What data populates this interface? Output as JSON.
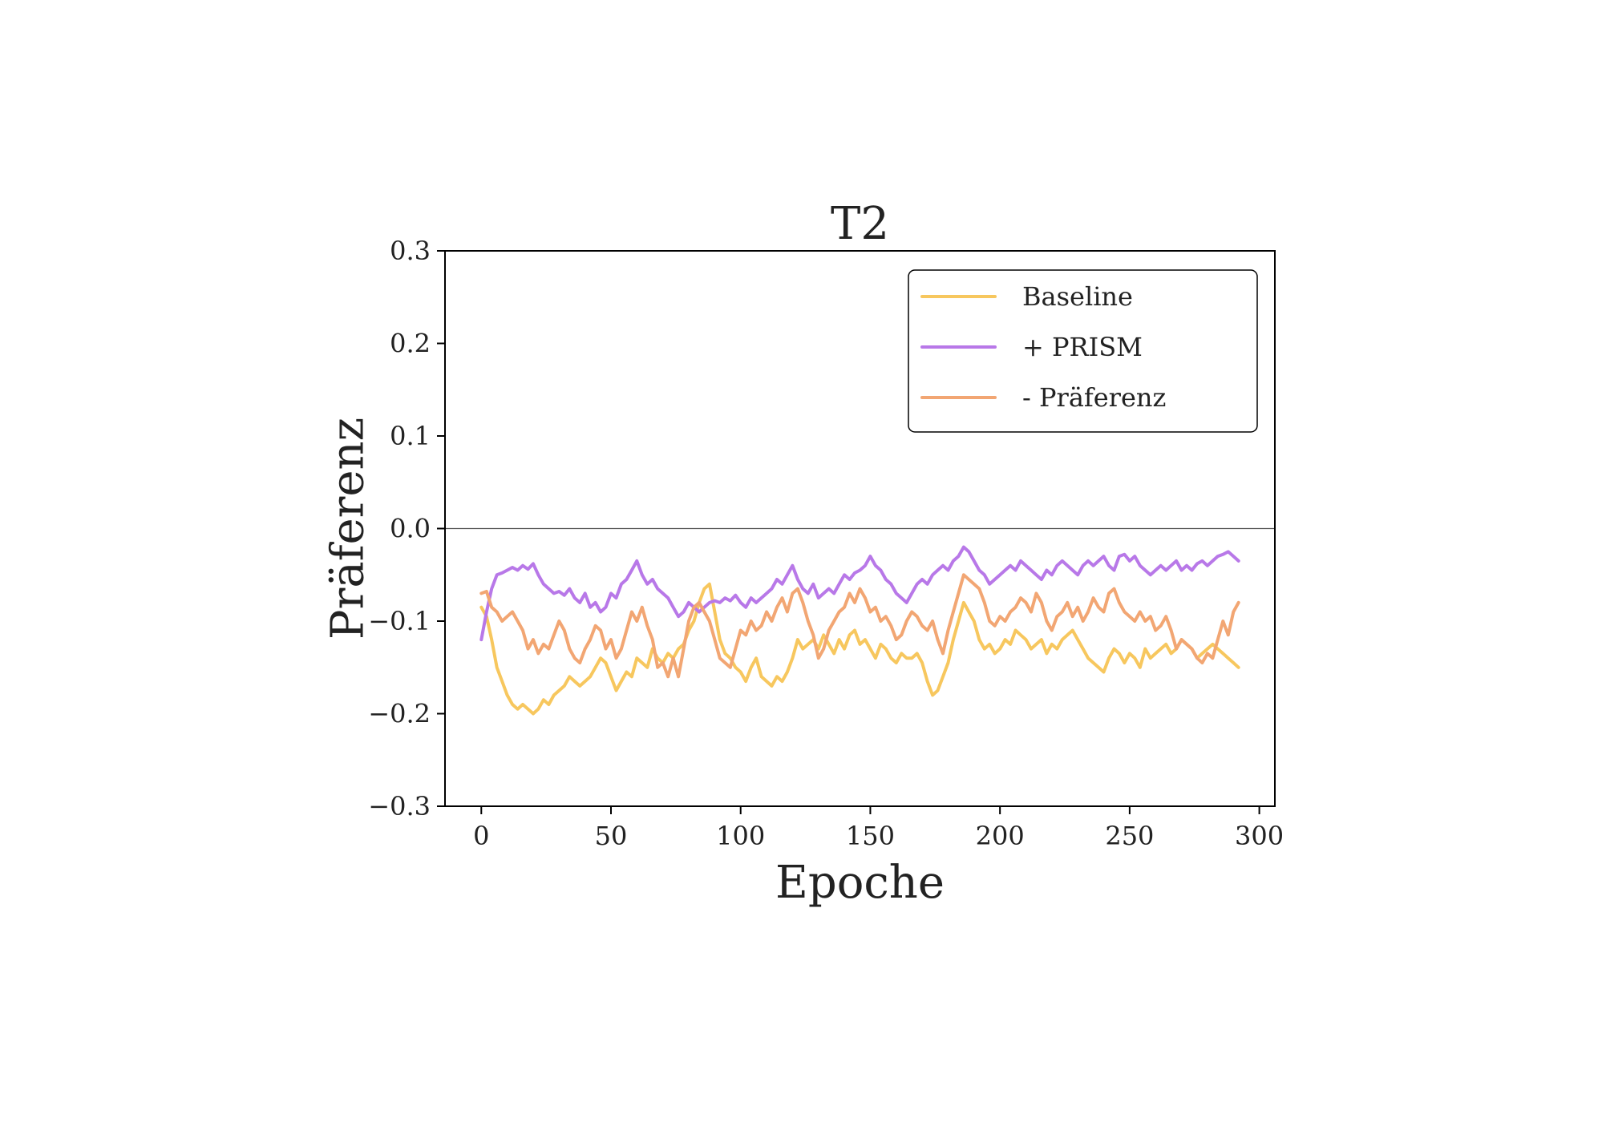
{
  "chart_data": {
    "type": "line",
    "title": "T2",
    "xlabel": "Epoche",
    "ylabel": "Präferenz",
    "xlim": [
      -14,
      306
    ],
    "ylim": [
      -0.3,
      0.3
    ],
    "xticks": [
      0,
      50,
      100,
      150,
      200,
      250,
      300
    ],
    "xtick_labels": [
      "0",
      "50",
      "100",
      "150",
      "200",
      "250",
      "300"
    ],
    "yticks": [
      0.3,
      0.2,
      0.1,
      0.0,
      -0.1,
      -0.2,
      -0.3
    ],
    "ytick_labels": [
      "0.3",
      "0.2",
      "0.1",
      "0.0",
      "−0.1",
      "−0.2",
      "−0.3"
    ],
    "grid": false,
    "reference_line_y": 0.0,
    "legend": {
      "position": "top-right"
    },
    "series": [
      {
        "name": "Baseline",
        "color": "#f7c75e",
        "x": [
          0,
          2,
          4,
          6,
          8,
          10,
          12,
          14,
          16,
          18,
          20,
          22,
          24,
          26,
          28,
          30,
          32,
          34,
          36,
          38,
          40,
          42,
          44,
          46,
          48,
          50,
          52,
          54,
          56,
          58,
          60,
          62,
          64,
          66,
          68,
          70,
          72,
          74,
          76,
          78,
          80,
          82,
          84,
          86,
          88,
          90,
          92,
          94,
          96,
          98,
          100,
          102,
          104,
          106,
          108,
          110,
          112,
          114,
          116,
          118,
          120,
          122,
          124,
          126,
          128,
          130,
          132,
          134,
          136,
          138,
          140,
          142,
          144,
          146,
          148,
          150,
          152,
          154,
          156,
          158,
          160,
          162,
          164,
          166,
          168,
          170,
          172,
          174,
          176,
          178,
          180,
          182,
          184,
          186,
          188,
          190,
          192,
          194,
          196,
          198,
          200,
          202,
          204,
          206,
          208,
          210,
          212,
          214,
          216,
          218,
          220,
          222,
          224,
          226,
          228,
          230,
          232,
          234,
          236,
          238,
          240,
          242,
          244,
          246,
          248,
          250,
          252,
          254,
          256,
          258,
          260,
          262,
          264,
          266,
          268,
          270,
          272,
          274,
          276,
          278,
          280,
          282,
          284,
          286,
          288,
          290,
          292
        ],
        "y": [
          -0.085,
          -0.095,
          -0.12,
          -0.15,
          -0.165,
          -0.18,
          -0.19,
          -0.195,
          -0.19,
          -0.195,
          -0.2,
          -0.195,
          -0.185,
          -0.19,
          -0.18,
          -0.175,
          -0.17,
          -0.16,
          -0.165,
          -0.17,
          -0.165,
          -0.16,
          -0.15,
          -0.14,
          -0.145,
          -0.16,
          -0.175,
          -0.165,
          -0.155,
          -0.16,
          -0.14,
          -0.145,
          -0.15,
          -0.13,
          -0.14,
          -0.145,
          -0.135,
          -0.14,
          -0.13,
          -0.125,
          -0.11,
          -0.1,
          -0.08,
          -0.065,
          -0.06,
          -0.09,
          -0.12,
          -0.135,
          -0.14,
          -0.15,
          -0.155,
          -0.165,
          -0.15,
          -0.14,
          -0.16,
          -0.165,
          -0.17,
          -0.16,
          -0.165,
          -0.155,
          -0.14,
          -0.12,
          -0.13,
          -0.125,
          -0.12,
          -0.13,
          -0.115,
          -0.125,
          -0.135,
          -0.12,
          -0.13,
          -0.115,
          -0.11,
          -0.125,
          -0.12,
          -0.13,
          -0.14,
          -0.125,
          -0.13,
          -0.14,
          -0.145,
          -0.135,
          -0.14,
          -0.14,
          -0.135,
          -0.145,
          -0.165,
          -0.18,
          -0.175,
          -0.16,
          -0.145,
          -0.12,
          -0.1,
          -0.08,
          -0.09,
          -0.1,
          -0.12,
          -0.13,
          -0.125,
          -0.135,
          -0.13,
          -0.12,
          -0.125,
          -0.11,
          -0.115,
          -0.12,
          -0.13,
          -0.125,
          -0.12,
          -0.135,
          -0.125,
          -0.13,
          -0.12,
          -0.115,
          -0.11,
          -0.12,
          -0.13,
          -0.14,
          -0.145,
          -0.15,
          -0.155,
          -0.14,
          -0.13,
          -0.135,
          -0.145,
          -0.135,
          -0.14,
          -0.15,
          -0.13,
          -0.14,
          -0.135,
          -0.13,
          -0.125,
          -0.135,
          -0.13,
          -0.12,
          -0.125,
          -0.13,
          -0.14,
          -0.135,
          -0.13,
          -0.125,
          -0.13,
          -0.135,
          -0.14,
          -0.145,
          -0.15
        ]
      },
      {
        "name": "+ PRISM",
        "color": "#b878e8",
        "x": [
          0,
          2,
          4,
          6,
          8,
          10,
          12,
          14,
          16,
          18,
          20,
          22,
          24,
          26,
          28,
          30,
          32,
          34,
          36,
          38,
          40,
          42,
          44,
          46,
          48,
          50,
          52,
          54,
          56,
          58,
          60,
          62,
          64,
          66,
          68,
          70,
          72,
          74,
          76,
          78,
          80,
          82,
          84,
          86,
          88,
          90,
          92,
          94,
          96,
          98,
          100,
          102,
          104,
          106,
          108,
          110,
          112,
          114,
          116,
          118,
          120,
          122,
          124,
          126,
          128,
          130,
          132,
          134,
          136,
          138,
          140,
          142,
          144,
          146,
          148,
          150,
          152,
          154,
          156,
          158,
          160,
          162,
          164,
          166,
          168,
          170,
          172,
          174,
          176,
          178,
          180,
          182,
          184,
          186,
          188,
          190,
          192,
          194,
          196,
          198,
          200,
          202,
          204,
          206,
          208,
          210,
          212,
          214,
          216,
          218,
          220,
          222,
          224,
          226,
          228,
          230,
          232,
          234,
          236,
          238,
          240,
          242,
          244,
          246,
          248,
          250,
          252,
          254,
          256,
          258,
          260,
          262,
          264,
          266,
          268,
          270,
          272,
          274,
          276,
          278,
          280,
          282,
          284,
          286,
          288,
          290,
          292
        ],
        "y": [
          -0.12,
          -0.09,
          -0.065,
          -0.05,
          -0.048,
          -0.045,
          -0.042,
          -0.045,
          -0.04,
          -0.044,
          -0.038,
          -0.05,
          -0.06,
          -0.065,
          -0.07,
          -0.068,
          -0.072,
          -0.065,
          -0.075,
          -0.08,
          -0.07,
          -0.085,
          -0.08,
          -0.09,
          -0.085,
          -0.07,
          -0.075,
          -0.06,
          -0.055,
          -0.045,
          -0.035,
          -0.05,
          -0.06,
          -0.055,
          -0.065,
          -0.07,
          -0.075,
          -0.085,
          -0.095,
          -0.09,
          -0.08,
          -0.085,
          -0.09,
          -0.085,
          -0.08,
          -0.078,
          -0.08,
          -0.075,
          -0.078,
          -0.072,
          -0.08,
          -0.085,
          -0.075,
          -0.08,
          -0.075,
          -0.07,
          -0.065,
          -0.055,
          -0.06,
          -0.05,
          -0.04,
          -0.055,
          -0.065,
          -0.07,
          -0.06,
          -0.075,
          -0.07,
          -0.065,
          -0.07,
          -0.06,
          -0.05,
          -0.055,
          -0.048,
          -0.045,
          -0.04,
          -0.03,
          -0.04,
          -0.045,
          -0.055,
          -0.06,
          -0.07,
          -0.075,
          -0.08,
          -0.07,
          -0.06,
          -0.055,
          -0.06,
          -0.05,
          -0.045,
          -0.04,
          -0.045,
          -0.035,
          -0.03,
          -0.02,
          -0.025,
          -0.035,
          -0.045,
          -0.05,
          -0.06,
          -0.055,
          -0.05,
          -0.045,
          -0.04,
          -0.045,
          -0.035,
          -0.04,
          -0.045,
          -0.05,
          -0.055,
          -0.045,
          -0.05,
          -0.04,
          -0.035,
          -0.04,
          -0.045,
          -0.05,
          -0.04,
          -0.035,
          -0.04,
          -0.035,
          -0.03,
          -0.04,
          -0.045,
          -0.03,
          -0.028,
          -0.035,
          -0.03,
          -0.04,
          -0.045,
          -0.05,
          -0.045,
          -0.04,
          -0.045,
          -0.04,
          -0.035,
          -0.045,
          -0.04,
          -0.045,
          -0.038,
          -0.035,
          -0.04,
          -0.035,
          -0.03,
          -0.028,
          -0.025,
          -0.03,
          -0.035
        ]
      },
      {
        "name": "- Präferenz",
        "color": "#f2a673",
        "x": [
          0,
          2,
          4,
          6,
          8,
          10,
          12,
          14,
          16,
          18,
          20,
          22,
          24,
          26,
          28,
          30,
          32,
          34,
          36,
          38,
          40,
          42,
          44,
          46,
          48,
          50,
          52,
          54,
          56,
          58,
          60,
          62,
          64,
          66,
          68,
          70,
          72,
          74,
          76,
          78,
          80,
          82,
          84,
          86,
          88,
          90,
          92,
          94,
          96,
          98,
          100,
          102,
          104,
          106,
          108,
          110,
          112,
          114,
          116,
          118,
          120,
          122,
          124,
          126,
          128,
          130,
          132,
          134,
          136,
          138,
          140,
          142,
          144,
          146,
          148,
          150,
          152,
          154,
          156,
          158,
          160,
          162,
          164,
          166,
          168,
          170,
          172,
          174,
          176,
          178,
          180,
          182,
          184,
          186,
          188,
          190,
          192,
          194,
          196,
          198,
          200,
          202,
          204,
          206,
          208,
          210,
          212,
          214,
          216,
          218,
          220,
          222,
          224,
          226,
          228,
          230,
          232,
          234,
          236,
          238,
          240,
          242,
          244,
          246,
          248,
          250,
          252,
          254,
          256,
          258,
          260,
          262,
          264,
          266,
          268,
          270,
          272,
          274,
          276,
          278,
          280,
          282,
          284,
          286,
          288,
          290,
          292
        ],
        "y": [
          -0.07,
          -0.068,
          -0.085,
          -0.09,
          -0.1,
          -0.095,
          -0.09,
          -0.1,
          -0.11,
          -0.13,
          -0.12,
          -0.135,
          -0.125,
          -0.13,
          -0.115,
          -0.1,
          -0.11,
          -0.13,
          -0.14,
          -0.145,
          -0.13,
          -0.12,
          -0.105,
          -0.11,
          -0.13,
          -0.12,
          -0.14,
          -0.13,
          -0.11,
          -0.09,
          -0.1,
          -0.085,
          -0.105,
          -0.12,
          -0.15,
          -0.145,
          -0.16,
          -0.14,
          -0.16,
          -0.13,
          -0.1,
          -0.085,
          -0.08,
          -0.09,
          -0.1,
          -0.12,
          -0.14,
          -0.145,
          -0.15,
          -0.13,
          -0.11,
          -0.115,
          -0.1,
          -0.11,
          -0.105,
          -0.09,
          -0.1,
          -0.085,
          -0.075,
          -0.09,
          -0.07,
          -0.065,
          -0.08,
          -0.1,
          -0.115,
          -0.14,
          -0.13,
          -0.11,
          -0.1,
          -0.09,
          -0.085,
          -0.07,
          -0.08,
          -0.065,
          -0.075,
          -0.09,
          -0.085,
          -0.1,
          -0.095,
          -0.105,
          -0.12,
          -0.115,
          -0.1,
          -0.09,
          -0.095,
          -0.105,
          -0.11,
          -0.1,
          -0.12,
          -0.135,
          -0.11,
          -0.09,
          -0.07,
          -0.05,
          -0.055,
          -0.06,
          -0.065,
          -0.08,
          -0.1,
          -0.105,
          -0.095,
          -0.1,
          -0.09,
          -0.085,
          -0.075,
          -0.08,
          -0.09,
          -0.07,
          -0.08,
          -0.1,
          -0.11,
          -0.095,
          -0.09,
          -0.08,
          -0.095,
          -0.085,
          -0.1,
          -0.09,
          -0.075,
          -0.085,
          -0.09,
          -0.07,
          -0.065,
          -0.08,
          -0.09,
          -0.095,
          -0.1,
          -0.09,
          -0.1,
          -0.095,
          -0.11,
          -0.105,
          -0.095,
          -0.11,
          -0.13,
          -0.12,
          -0.125,
          -0.13,
          -0.14,
          -0.145,
          -0.135,
          -0.14,
          -0.12,
          -0.1,
          -0.115,
          -0.09,
          -0.08
        ]
      }
    ]
  }
}
